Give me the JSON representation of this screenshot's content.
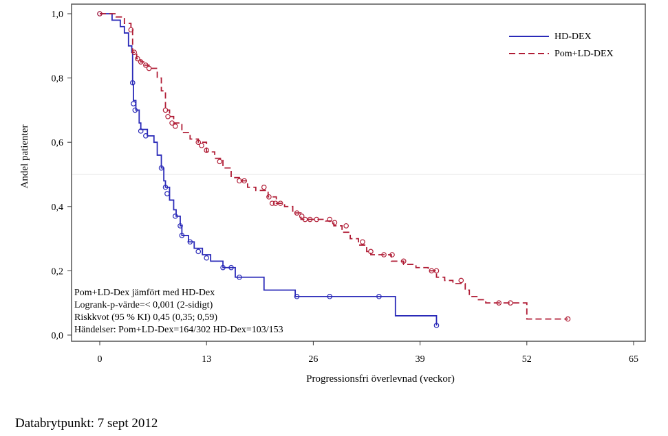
{
  "chart_data": {
    "type": "line",
    "subtype": "kaplan-meier",
    "xlabel": "Progressionsfri överlevnad (veckor)",
    "ylabel": "Andel patienter",
    "xlim": [
      -8.5,
      68
    ],
    "ylim": [
      -0.04,
      1.03
    ],
    "xticks": [
      0,
      13,
      26,
      39,
      52,
      65
    ],
    "xtick_labels": [
      "0",
      "13",
      "26",
      "39",
      "52",
      "65"
    ],
    "yticks": [
      0,
      0.2,
      0.4,
      0.6,
      0.8,
      1.0
    ],
    "ytick_labels": [
      "0,0",
      "0,2",
      "0,4",
      "0,6",
      "0,8",
      "1,0"
    ],
    "reference_line_y": 0.5,
    "legend_position": "top-right",
    "series": [
      {
        "name": "HD-DEX",
        "color": "#2a2ab8",
        "dash": "solid",
        "steps": [
          [
            0,
            1.0
          ],
          [
            1.5,
            0.98
          ],
          [
            2.5,
            0.96
          ],
          [
            3,
            0.94
          ],
          [
            3.5,
            0.9
          ],
          [
            3.9,
            0.88
          ],
          [
            4,
            0.78
          ],
          [
            4.1,
            0.73
          ],
          [
            4.4,
            0.7
          ],
          [
            4.8,
            0.66
          ],
          [
            5,
            0.64
          ],
          [
            5.8,
            0.62
          ],
          [
            6.6,
            0.6
          ],
          [
            7,
            0.56
          ],
          [
            7.5,
            0.52
          ],
          [
            7.8,
            0.48
          ],
          [
            8,
            0.46
          ],
          [
            8.5,
            0.42
          ],
          [
            9,
            0.39
          ],
          [
            9.3,
            0.37
          ],
          [
            9.8,
            0.34
          ],
          [
            10,
            0.31
          ],
          [
            10.8,
            0.29
          ],
          [
            11.5,
            0.27
          ],
          [
            12.5,
            0.25
          ],
          [
            13.5,
            0.23
          ],
          [
            15,
            0.21
          ],
          [
            16.5,
            0.18
          ],
          [
            20,
            0.14
          ],
          [
            23.8,
            0.12
          ],
          [
            36,
            0.06
          ],
          [
            41,
            0.03
          ]
        ],
        "censored": [
          [
            0,
            1.0
          ],
          [
            4,
            0.785
          ],
          [
            4.1,
            0.72
          ],
          [
            4.3,
            0.7
          ],
          [
            5,
            0.635
          ],
          [
            5.6,
            0.62
          ],
          [
            7.5,
            0.52
          ],
          [
            8,
            0.46
          ],
          [
            8.2,
            0.44
          ],
          [
            9.2,
            0.37
          ],
          [
            9.8,
            0.34
          ],
          [
            10,
            0.31
          ],
          [
            11,
            0.29
          ],
          [
            12,
            0.26
          ],
          [
            13,
            0.24
          ],
          [
            15,
            0.21
          ],
          [
            16,
            0.21
          ],
          [
            17,
            0.18
          ],
          [
            24,
            0.12
          ],
          [
            28,
            0.12
          ],
          [
            34,
            0.12
          ],
          [
            41,
            0.03
          ]
        ]
      },
      {
        "name": "Pom+LD-DEX",
        "color": "#b01c35",
        "dash": "dashed",
        "steps": [
          [
            0,
            1.0
          ],
          [
            2,
            0.99
          ],
          [
            3,
            0.97
          ],
          [
            3.8,
            0.95
          ],
          [
            4,
            0.88
          ],
          [
            4.5,
            0.86
          ],
          [
            5,
            0.85
          ],
          [
            5.5,
            0.84
          ],
          [
            6,
            0.83
          ],
          [
            7,
            0.8
          ],
          [
            7.5,
            0.76
          ],
          [
            8,
            0.7
          ],
          [
            8.5,
            0.68
          ],
          [
            9,
            0.66
          ],
          [
            10,
            0.63
          ],
          [
            11,
            0.61
          ],
          [
            12,
            0.6
          ],
          [
            13,
            0.57
          ],
          [
            14,
            0.55
          ],
          [
            15,
            0.52
          ],
          [
            16,
            0.49
          ],
          [
            17,
            0.48
          ],
          [
            18,
            0.46
          ],
          [
            19,
            0.45
          ],
          [
            20.5,
            0.43
          ],
          [
            21.5,
            0.41
          ],
          [
            22.5,
            0.4
          ],
          [
            23.5,
            0.38
          ],
          [
            24.5,
            0.36
          ],
          [
            27.5,
            0.355
          ],
          [
            28.5,
            0.34
          ],
          [
            29.5,
            0.32
          ],
          [
            30.5,
            0.3
          ],
          [
            31.5,
            0.28
          ],
          [
            32.5,
            0.26
          ],
          [
            33,
            0.25
          ],
          [
            35.5,
            0.23
          ],
          [
            37,
            0.22
          ],
          [
            38.5,
            0.21
          ],
          [
            40,
            0.2
          ],
          [
            41,
            0.18
          ],
          [
            42,
            0.17
          ],
          [
            43,
            0.16
          ],
          [
            44.5,
            0.14
          ],
          [
            45,
            0.12
          ],
          [
            46,
            0.11
          ],
          [
            47,
            0.1
          ],
          [
            52,
            0.05
          ],
          [
            57,
            0.05
          ]
        ],
        "censored": [
          [
            0,
            1.0
          ],
          [
            3.8,
            0.95
          ],
          [
            4.2,
            0.88
          ],
          [
            4.6,
            0.86
          ],
          [
            5,
            0.85
          ],
          [
            5.6,
            0.84
          ],
          [
            6,
            0.83
          ],
          [
            8,
            0.7
          ],
          [
            8.3,
            0.68
          ],
          [
            8.8,
            0.66
          ],
          [
            9.2,
            0.65
          ],
          [
            12,
            0.6
          ],
          [
            12.4,
            0.59
          ],
          [
            13,
            0.575
          ],
          [
            14.6,
            0.54
          ],
          [
            17,
            0.48
          ],
          [
            17.6,
            0.48
          ],
          [
            20,
            0.46
          ],
          [
            20.6,
            0.43
          ],
          [
            21,
            0.41
          ],
          [
            21.4,
            0.41
          ],
          [
            22,
            0.41
          ],
          [
            24,
            0.38
          ],
          [
            24.6,
            0.37
          ],
          [
            25,
            0.36
          ],
          [
            25.6,
            0.36
          ],
          [
            26.4,
            0.36
          ],
          [
            28,
            0.36
          ],
          [
            28.6,
            0.35
          ],
          [
            30,
            0.34
          ],
          [
            32,
            0.29
          ],
          [
            33,
            0.26
          ],
          [
            34.6,
            0.25
          ],
          [
            35.6,
            0.25
          ],
          [
            37,
            0.23
          ],
          [
            40.4,
            0.2
          ],
          [
            41,
            0.2
          ],
          [
            44,
            0.17
          ],
          [
            48.6,
            0.1
          ],
          [
            50,
            0.1
          ],
          [
            57,
            0.05
          ]
        ]
      }
    ],
    "annotation": [
      "Pom+LD-Dex jämfört med HD-Dex",
      "Logrank-p-värde=< 0,001 (2-sidigt)",
      "Riskkvot (95 % KI) 0,45 (0,35; 0,59)",
      "Händelser: Pom+LD-Dex=164/302 HD-Dex=103/153"
    ]
  },
  "footnote": "Databrytpunkt: 7 sept 2012"
}
